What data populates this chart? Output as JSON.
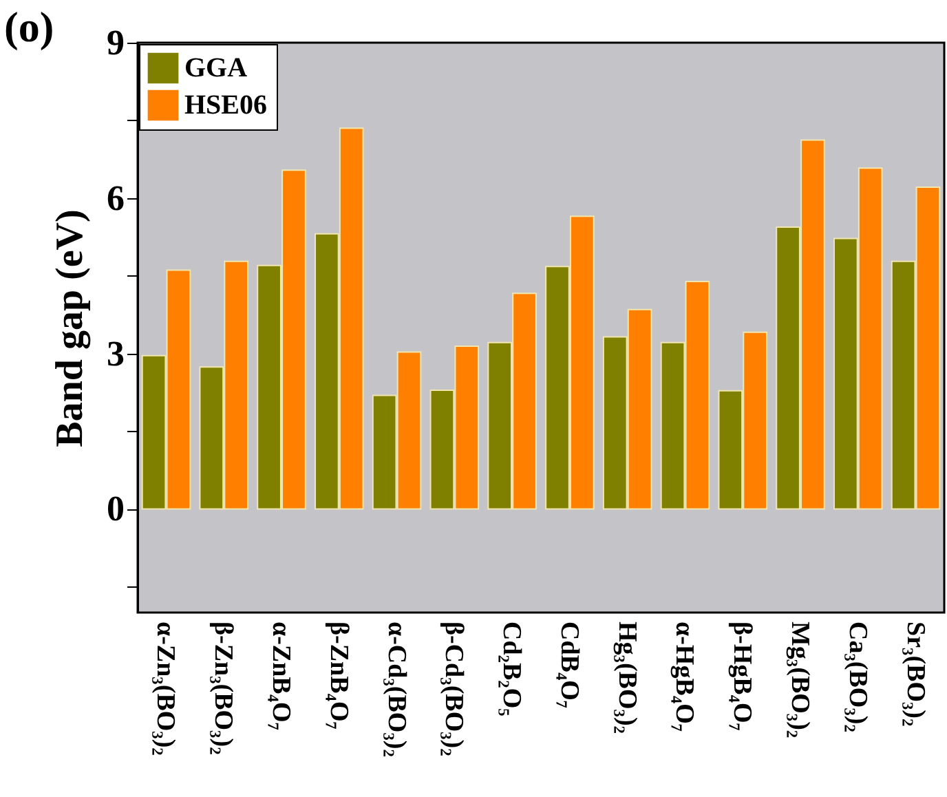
{
  "chart_data": {
    "type": "bar",
    "title": "(o)",
    "ylabel": "Band gap (eV)",
    "categories": [
      "α-Zn₃(BO₃)₂",
      "β-Zn₃(BO₃)₂",
      "α-ZnB₄O₇",
      "β-ZnB₄O₇",
      "α-Cd₃(BO₃)₂",
      "β-Cd₃(BO₃)₂",
      "Cd₂B₂O₅",
      "CdB₄O₇",
      "Hg₃(BO₃)₂",
      "α-HgB₄O₇",
      "β-HgB₄O₇",
      "Mg₃(BO₃)₂",
      "Ca₃(BO₃)₂",
      "Sr₃(BO₃)₂"
    ],
    "series": [
      {
        "name": "GGA",
        "color": "#808000",
        "values": [
          2.96,
          2.74,
          4.7,
          5.31,
          2.19,
          2.29,
          3.21,
          4.68,
          3.32,
          3.21,
          2.28,
          5.44,
          5.22,
          4.78
        ]
      },
      {
        "name": "HSE06",
        "color": "#ff8000",
        "values": [
          4.61,
          4.78,
          6.54,
          7.35,
          3.03,
          3.14,
          4.16,
          5.65,
          3.85,
          4.39,
          3.41,
          7.12,
          6.58,
          6.21
        ]
      }
    ],
    "ylim": [
      -2,
      9
    ],
    "yticks": [
      {
        "value": -1.5,
        "label": null
      },
      0,
      {
        "value": 1.5,
        "label": null
      },
      3,
      {
        "value": 4.5,
        "label": null
      },
      6,
      {
        "value": 7.5,
        "label": null
      },
      9
    ],
    "legend": "top left"
  }
}
